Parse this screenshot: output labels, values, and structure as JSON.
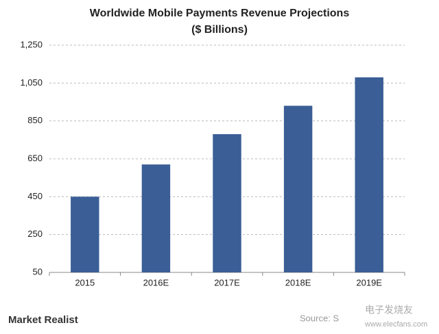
{
  "chart_data": {
    "type": "bar",
    "title": "Worldwide Mobile Payments Revenue Projections",
    "subtitle": "($ Billions)",
    "categories": [
      "2015",
      "2016E",
      "2017E",
      "2018E",
      "2019E"
    ],
    "values": [
      450,
      620,
      780,
      930,
      1080
    ],
    "color": "#3a5e95",
    "ylim": [
      50,
      1250
    ],
    "yticks": [
      50,
      250,
      450,
      650,
      850,
      {
        "value": 1050,
        "label": "1,050"
      },
      {
        "value": 1250,
        "label": "1,250"
      }
    ],
    "grid": true
  },
  "footer": {
    "brand": "Market Realist",
    "source": "Source: S",
    "watermark_name": "电子发烧友",
    "watermark_url": "www.elecfans.com"
  }
}
